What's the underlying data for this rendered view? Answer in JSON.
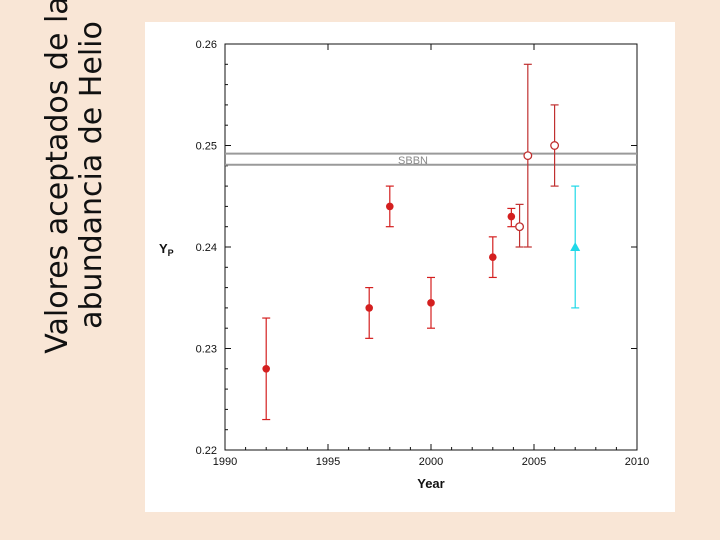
{
  "slide": {
    "title_line1": "Valores aceptados de la",
    "title_line2": "abundancia de Helio"
  },
  "chart_data": {
    "type": "scatter",
    "title": "",
    "xlabel": "Year",
    "ylabel": "Y",
    "ylabel_subscript": "P",
    "xlim": [
      1990,
      2010
    ],
    "ylim": [
      0.22,
      0.26
    ],
    "x_ticks": [
      1990,
      1995,
      2000,
      2005,
      2010
    ],
    "y_ticks": [
      "0.22",
      "0.23",
      "0.24",
      "0.25",
      "0.26"
    ],
    "grid": false,
    "band": {
      "label": "SBBN",
      "y_low": 0.2481,
      "y_high": 0.2492,
      "color": "#9a9a9a"
    },
    "series": [
      {
        "marker": "filled-circle",
        "color": "#d41f1f",
        "points": [
          {
            "x": 1992,
            "y": 0.228,
            "err_low": 0.223,
            "err_high": 0.233
          },
          {
            "x": 1997,
            "y": 0.234,
            "err_low": 0.231,
            "err_high": 0.236
          },
          {
            "x": 1998,
            "y": 0.244,
            "err_low": 0.242,
            "err_high": 0.246
          },
          {
            "x": 2000,
            "y": 0.2345,
            "err_low": 0.232,
            "err_high": 0.237
          },
          {
            "x": 2003,
            "y": 0.239,
            "err_low": 0.237,
            "err_high": 0.241
          },
          {
            "x": 2003.9,
            "y": 0.243,
            "err_low": 0.242,
            "err_high": 0.2438
          }
        ]
      },
      {
        "marker": "open-circle",
        "color": "#c03030",
        "points": [
          {
            "x": 2004.3,
            "y": 0.242,
            "err_low": 0.24,
            "err_high": 0.2442
          },
          {
            "x": 2004.7,
            "y": 0.249,
            "err_low": 0.24,
            "err_high": 0.258
          },
          {
            "x": 2006,
            "y": 0.25,
            "err_low": 0.246,
            "err_high": 0.254
          }
        ]
      },
      {
        "marker": "triangle",
        "color": "#1fd8e8",
        "points": [
          {
            "x": 2007,
            "y": 0.24,
            "err_low": 0.234,
            "err_high": 0.246
          }
        ]
      }
    ]
  }
}
